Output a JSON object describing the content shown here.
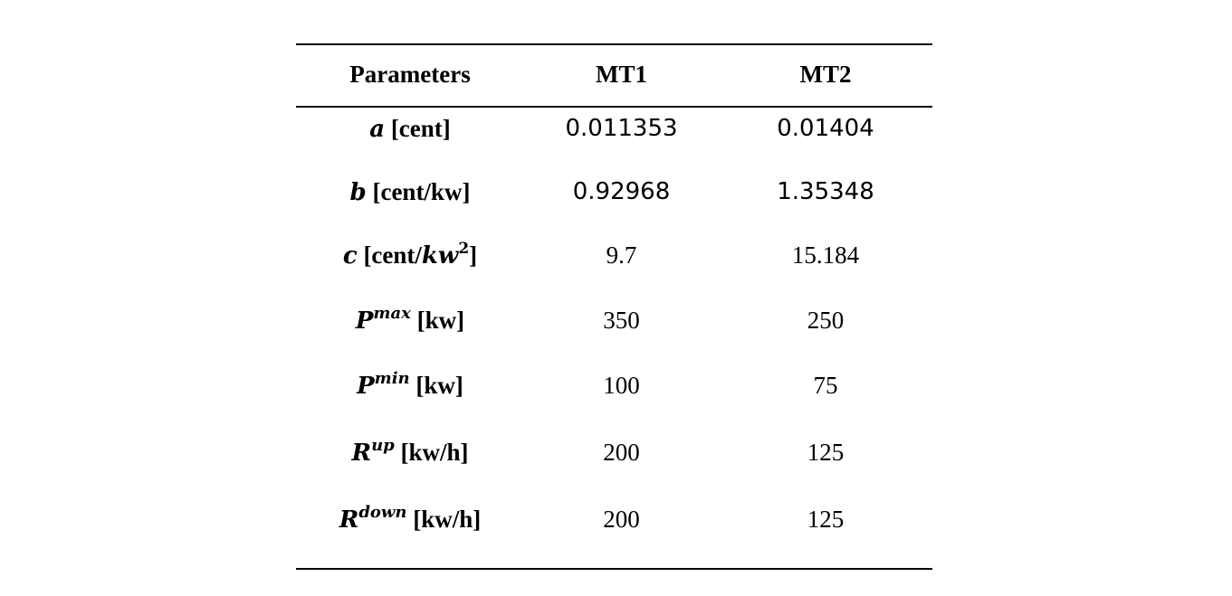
{
  "table": {
    "headers": [
      "Parameters",
      "MT1",
      "MT2"
    ],
    "rows": [
      {
        "symbol": "a",
        "sup": "",
        "unit_pre": "[cent",
        "unit_sym": "",
        "unit_sup": "",
        "unit_post": "]",
        "mt1": "0.011353",
        "mt2": "0.01404"
      },
      {
        "symbol": "b",
        "sup": "",
        "unit_pre": "[cent/kw",
        "unit_sym": "",
        "unit_sup": "",
        "unit_post": "]",
        "mt1": "0.92968",
        "mt2": "1.35348"
      },
      {
        "symbol": "c",
        "sup": "",
        "unit_pre": "[cent/",
        "unit_sym": "kw",
        "unit_sup": "2",
        "unit_post": "]",
        "mt1": "9.7",
        "mt2": "15.184"
      },
      {
        "symbol": "P",
        "sup": "max",
        "unit_pre": "[kw",
        "unit_sym": "",
        "unit_sup": "",
        "unit_post": "]",
        "mt1": "350",
        "mt2": "250"
      },
      {
        "symbol": "P",
        "sup": "min",
        "unit_pre": "[kw",
        "unit_sym": "",
        "unit_sup": "",
        "unit_post": "]",
        "mt1": "100",
        "mt2": "75"
      },
      {
        "symbol": "R",
        "sup": "up",
        "unit_pre": "[kw/h",
        "unit_sym": "",
        "unit_sup": "",
        "unit_post": "]",
        "mt1": "200",
        "mt2": "125"
      },
      {
        "symbol": "R",
        "sup": "down",
        "unit_pre": "[kw/h",
        "unit_sym": "",
        "unit_sup": "",
        "unit_post": "]",
        "mt1": "200",
        "mt2": "125"
      }
    ]
  }
}
